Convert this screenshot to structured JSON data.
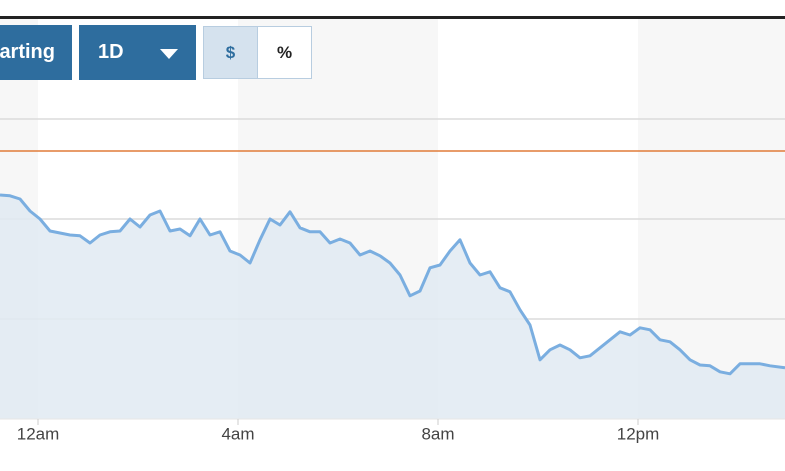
{
  "controls": {
    "chart_button": "arting",
    "range_button": "1D",
    "units": [
      "$",
      "%"
    ]
  },
  "chart_data": {
    "type": "area",
    "color": "#7aaee0",
    "fill": "#e1eaf2",
    "x": [
      -0.76,
      -0.56,
      -0.36,
      -0.16,
      0.04,
      0.24,
      0.44,
      0.64,
      0.84,
      1.04,
      1.24,
      1.44,
      1.64,
      1.84,
      2.04,
      2.24,
      2.44,
      2.64,
      2.84,
      3.04,
      3.24,
      3.44,
      3.64,
      3.84,
      4.04,
      4.24,
      4.44,
      4.64,
      4.84,
      5.04,
      5.24,
      5.44,
      5.64,
      5.84,
      6.04,
      6.24,
      6.44,
      6.64,
      6.84,
      7.04,
      7.24,
      7.44,
      7.64,
      7.84,
      8.04,
      8.24,
      8.44,
      8.64,
      8.84,
      9.04,
      9.24,
      9.44,
      9.64,
      9.84,
      10.04,
      10.24,
      10.44,
      10.64,
      10.84,
      11.04,
      11.24,
      11.44,
      11.64,
      11.84,
      12.04,
      12.24,
      12.44,
      12.64,
      12.84,
      13.04,
      13.24,
      13.44,
      13.64,
      13.84,
      14.04,
      14.24,
      14.44,
      14.64,
      14.94
    ],
    "values": [
      56,
      55.8,
      55,
      52,
      50,
      47,
      46.5,
      46,
      45.8,
      44,
      46,
      46.8,
      47,
      50,
      48,
      51,
      52,
      47,
      47.5,
      45.8,
      50,
      46,
      46.8,
      42,
      41,
      39,
      44.8,
      50,
      48.5,
      51.8,
      47.8,
      46.8,
      46.8,
      44,
      45,
      44,
      41,
      42,
      40.8,
      39,
      36,
      30.8,
      32,
      37.8,
      38.5,
      42,
      44.8,
      39,
      36,
      36.8,
      32.8,
      31.8,
      27.3,
      23.5,
      14.8,
      17.3,
      18.5,
      17.3,
      15.3,
      15.8,
      17.8,
      19.8,
      21.8,
      21,
      22.8,
      22.3,
      19.8,
      19.3,
      17.3,
      14.8,
      13.5,
      13.3,
      11.8,
      11.3,
      13.8,
      13.8,
      13.8,
      13.3,
      12.8
    ],
    "xlim": [
      -0.76,
      14.94
    ],
    "ylim": [
      0,
      100
    ],
    "xticks": [
      {
        "value": 0,
        "label": "12am"
      },
      {
        "value": 4,
        "label": "4am"
      },
      {
        "value": 8,
        "label": "8am"
      },
      {
        "value": 12,
        "label": "12pm"
      }
    ],
    "yticks": [
      25,
      50,
      75
    ],
    "grid": true,
    "reference_line": {
      "value": 67,
      "color": "#e07b39"
    }
  }
}
